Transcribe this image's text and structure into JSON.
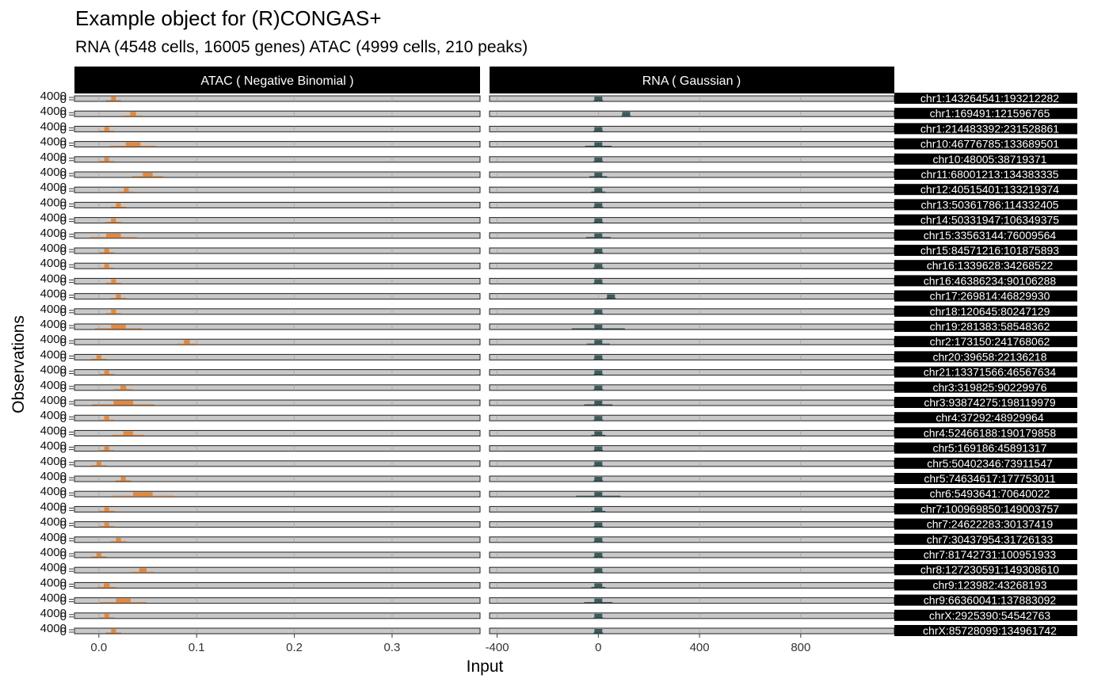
{
  "title": "Example object for (R)CONGAS+",
  "subtitle": "RNA (4548 cells, 16005 genes) ATAC (4999 cells, 210 peaks)",
  "colors": {
    "atac": "#E0863A",
    "rna": "#2F4F4F",
    "strip": "#000000",
    "panel": "#C8C8C8"
  },
  "chart_data": {
    "type": "area",
    "title": "Example object for (R)CONGAS+",
    "subtitle": "RNA (4548 cells, 16005 genes) ATAC (4999 cells, 210 peaks)",
    "xlabel": "Input",
    "ylabel": "Observations",
    "grid": true,
    "facets": [
      {
        "name": "ATAC ( Negative Binomial )",
        "xlim": [
          -0.025,
          0.39
        ],
        "ticks": [
          0.0,
          0.1,
          0.2,
          0.3
        ],
        "tick_labels": [
          "0.0",
          "0.1",
          "0.2",
          "0.3"
        ]
      },
      {
        "name": "RNA ( Gaussian )",
        "xlim": [
          -430,
          1170
        ],
        "ticks": [
          -400,
          0,
          400,
          800
        ],
        "tick_labels": [
          "-400",
          "0",
          "400",
          "800"
        ]
      }
    ],
    "y_tick_labels": [
      "0",
      "4000"
    ],
    "segments": [
      {
        "label": "chr1:143264541:193212282",
        "atac_peak": 0.015,
        "atac_spread": 0.008,
        "rna_peak": 0,
        "rna_spread": 30
      },
      {
        "label": "chr1:169491:121596765",
        "atac_peak": 0.035,
        "atac_spread": 0.012,
        "rna_peak": 110,
        "rna_spread": 20
      },
      {
        "label": "chr1:214483392:231528861",
        "atac_peak": 0.008,
        "atac_spread": 0.006,
        "rna_peak": 0,
        "rna_spread": 10
      },
      {
        "label": "chr10:46776785:133689501",
        "atac_peak": 0.035,
        "atac_spread": 0.03,
        "rna_peak": 0,
        "rna_spread": 150
      },
      {
        "label": "chr10:48005:38719371",
        "atac_peak": 0.008,
        "atac_spread": 0.006,
        "rna_peak": 0,
        "rna_spread": 20
      },
      {
        "label": "chr11:68001213:134383335",
        "atac_peak": 0.05,
        "atac_spread": 0.02,
        "rna_peak": 0,
        "rna_spread": 100
      },
      {
        "label": "chr12:40515401:133219374",
        "atac_peak": 0.028,
        "atac_spread": 0.01,
        "rna_peak": 0,
        "rna_spread": 80
      },
      {
        "label": "chr13:50361786:114332405",
        "atac_peak": 0.02,
        "atac_spread": 0.01,
        "rna_peak": 0,
        "rna_spread": 10
      },
      {
        "label": "chr14:50331947:106349375",
        "atac_peak": 0.015,
        "atac_spread": 0.01,
        "rna_peak": 0,
        "rna_spread": 40
      },
      {
        "label": "chr15:33563144:76009564",
        "atac_peak": 0.015,
        "atac_spread": 0.03,
        "rna_peak": 0,
        "rna_spread": 140
      },
      {
        "label": "chr15:84571216:101875893",
        "atac_peak": 0.008,
        "atac_spread": 0.01,
        "rna_peak": 0,
        "rna_spread": 10
      },
      {
        "label": "chr16:1339628:34268522",
        "atac_peak": 0.008,
        "atac_spread": 0.006,
        "rna_peak": 0,
        "rna_spread": 60
      },
      {
        "label": "chr16:46386234:90106288",
        "atac_peak": 0.015,
        "atac_spread": 0.006,
        "rna_peak": 0,
        "rna_spread": 40
      },
      {
        "label": "chr17:269814:46829930",
        "atac_peak": 0.02,
        "atac_spread": 0.01,
        "rna_peak": 50,
        "rna_spread": 40
      },
      {
        "label": "chr18:120645:80247129",
        "atac_peak": 0.015,
        "atac_spread": 0.008,
        "rna_peak": 0,
        "rna_spread": 40
      },
      {
        "label": "chr19:281383:58548362",
        "atac_peak": 0.02,
        "atac_spread": 0.03,
        "rna_peak": 0,
        "rna_spread": 300
      },
      {
        "label": "chr2:173150:241768062",
        "atac_peak": 0.09,
        "atac_spread": 0.012,
        "rna_peak": 0,
        "rna_spread": 130
      },
      {
        "label": "chr20:39658:22136218",
        "atac_peak": 0.0,
        "atac_spread": 0.006,
        "rna_peak": 0,
        "rna_spread": 10
      },
      {
        "label": "chr21:13371566:46567634",
        "atac_peak": 0.008,
        "atac_spread": 0.006,
        "rna_peak": 0,
        "rna_spread": 10
      },
      {
        "label": "chr3:319825:90229976",
        "atac_peak": 0.025,
        "atac_spread": 0.012,
        "rna_peak": 0,
        "rna_spread": 10
      },
      {
        "label": "chr3:93874275:198119979",
        "atac_peak": 0.025,
        "atac_spread": 0.04,
        "rna_peak": 0,
        "rna_spread": 160
      },
      {
        "label": "chr4:37292:48929964",
        "atac_peak": 0.008,
        "atac_spread": 0.01,
        "rna_peak": 0,
        "rna_spread": 30
      },
      {
        "label": "chr4:52466188:190179858",
        "atac_peak": 0.03,
        "atac_spread": 0.02,
        "rna_peak": 0,
        "rna_spread": 80
      },
      {
        "label": "chr5:169186:45891317",
        "atac_peak": 0.008,
        "atac_spread": 0.006,
        "rna_peak": 0,
        "rna_spread": 10
      },
      {
        "label": "chr5:50402346:73911547",
        "atac_peak": 0.0,
        "atac_spread": 0.006,
        "rna_peak": 0,
        "rna_spread": 10
      },
      {
        "label": "chr5:74634617:177753011",
        "atac_peak": 0.025,
        "atac_spread": 0.01,
        "rna_peak": 0,
        "rna_spread": 50
      },
      {
        "label": "chr6:5493641:70640022",
        "atac_peak": 0.045,
        "atac_spread": 0.04,
        "rna_peak": 0,
        "rna_spread": 250
      },
      {
        "label": "chr7:100969850:149003757",
        "atac_peak": 0.008,
        "atac_spread": 0.01,
        "rna_peak": 0,
        "rna_spread": 80
      },
      {
        "label": "chr7:24622283:30137419",
        "atac_peak": 0.008,
        "atac_spread": 0.008,
        "rna_peak": 0,
        "rna_spread": 10
      },
      {
        "label": "chr7:30437954:31726133",
        "atac_peak": 0.02,
        "atac_spread": 0.01,
        "rna_peak": 0,
        "rna_spread": 40
      },
      {
        "label": "chr7:81742731:100951933",
        "atac_peak": 0.0,
        "atac_spread": 0.008,
        "rna_peak": 0,
        "rna_spread": 40
      },
      {
        "label": "chr8:127230591:149308610",
        "atac_peak": 0.045,
        "atac_spread": 0.015,
        "rna_peak": 0,
        "rna_spread": 30
      },
      {
        "label": "chr9:123982:43268193",
        "atac_peak": 0.008,
        "atac_spread": 0.012,
        "rna_peak": 0,
        "rna_spread": 80
      },
      {
        "label": "chr9:66360041:137883092",
        "atac_peak": 0.025,
        "atac_spread": 0.03,
        "rna_peak": 0,
        "rna_spread": 160
      },
      {
        "label": "chrX:2925390:54542763",
        "atac_peak": 0.008,
        "atac_spread": 0.008,
        "rna_peak": 0,
        "rna_spread": 40
      },
      {
        "label": "chrX:85728099:134961742",
        "atac_peak": 0.015,
        "atac_spread": 0.008,
        "rna_peak": 0,
        "rna_spread": 30
      }
    ]
  }
}
